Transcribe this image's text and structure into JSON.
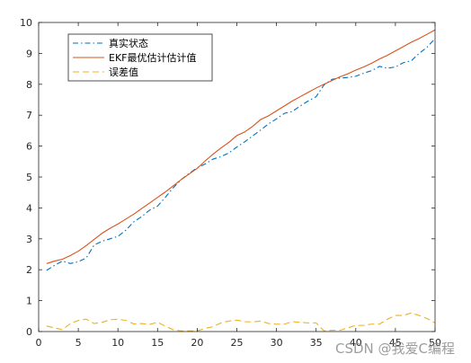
{
  "chart_data": {
    "type": "line",
    "title": "",
    "xlabel": "",
    "ylabel": "",
    "xlim": [
      0,
      50
    ],
    "ylim": [
      0,
      10
    ],
    "xticks": [
      0,
      5,
      10,
      15,
      20,
      25,
      30,
      35,
      40,
      45,
      50
    ],
    "yticks": [
      0,
      1,
      2,
      3,
      4,
      5,
      6,
      7,
      8,
      9,
      10
    ],
    "grid": false,
    "legend": "top-left",
    "x": [
      1,
      2,
      3,
      4,
      5,
      6,
      7,
      8,
      9,
      10,
      11,
      12,
      13,
      14,
      15,
      16,
      17,
      18,
      19,
      20,
      21,
      22,
      23,
      24,
      25,
      26,
      27,
      28,
      29,
      30,
      31,
      32,
      33,
      34,
      35,
      36,
      37,
      38,
      39,
      40,
      41,
      42,
      43,
      44,
      45,
      46,
      47,
      48,
      49,
      50
    ],
    "series": [
      {
        "name": "真实状态",
        "color": "#0072BD",
        "style": "dashdot",
        "values": [
          1.98,
          2.14,
          2.28,
          2.2,
          2.26,
          2.38,
          2.8,
          2.92,
          3.0,
          3.08,
          3.28,
          3.55,
          3.72,
          3.93,
          4.06,
          4.35,
          4.66,
          4.92,
          5.12,
          5.3,
          5.42,
          5.58,
          5.66,
          5.78,
          5.97,
          6.14,
          6.33,
          6.52,
          6.72,
          6.88,
          7.06,
          7.12,
          7.3,
          7.46,
          7.6,
          7.98,
          8.16,
          8.2,
          8.22,
          8.26,
          8.36,
          8.44,
          8.58,
          8.52,
          8.56,
          8.7,
          8.76,
          9.0,
          9.2,
          9.48
        ]
      },
      {
        "name": "EKF最优估计估计值",
        "color": "#D95319",
        "style": "solid",
        "values": [
          2.2,
          2.28,
          2.34,
          2.46,
          2.6,
          2.78,
          2.98,
          3.18,
          3.34,
          3.48,
          3.64,
          3.8,
          3.98,
          4.16,
          4.34,
          4.52,
          4.72,
          4.92,
          5.1,
          5.28,
          5.52,
          5.74,
          5.94,
          6.12,
          6.34,
          6.46,
          6.64,
          6.86,
          6.98,
          7.14,
          7.3,
          7.46,
          7.6,
          7.74,
          7.88,
          8.0,
          8.12,
          8.24,
          8.34,
          8.46,
          8.56,
          8.68,
          8.82,
          8.94,
          9.08,
          9.22,
          9.36,
          9.48,
          9.62,
          9.76
        ]
      },
      {
        "name": "误差值",
        "color": "#EDB120",
        "style": "dashed",
        "values": [
          0.18,
          0.12,
          0.06,
          0.26,
          0.36,
          0.4,
          0.26,
          0.3,
          0.38,
          0.4,
          0.36,
          0.25,
          0.26,
          0.23,
          0.3,
          0.17,
          0.06,
          0.02,
          0.02,
          0.02,
          0.1,
          0.16,
          0.28,
          0.34,
          0.37,
          0.32,
          0.31,
          0.34,
          0.26,
          0.24,
          0.24,
          0.32,
          0.3,
          0.28,
          0.28,
          0.02,
          0.04,
          0.04,
          0.12,
          0.2,
          0.2,
          0.24,
          0.24,
          0.4,
          0.52,
          0.52,
          0.6,
          0.52,
          0.42,
          0.28
        ]
      }
    ]
  },
  "watermark": "CSDN @我爱C编程"
}
